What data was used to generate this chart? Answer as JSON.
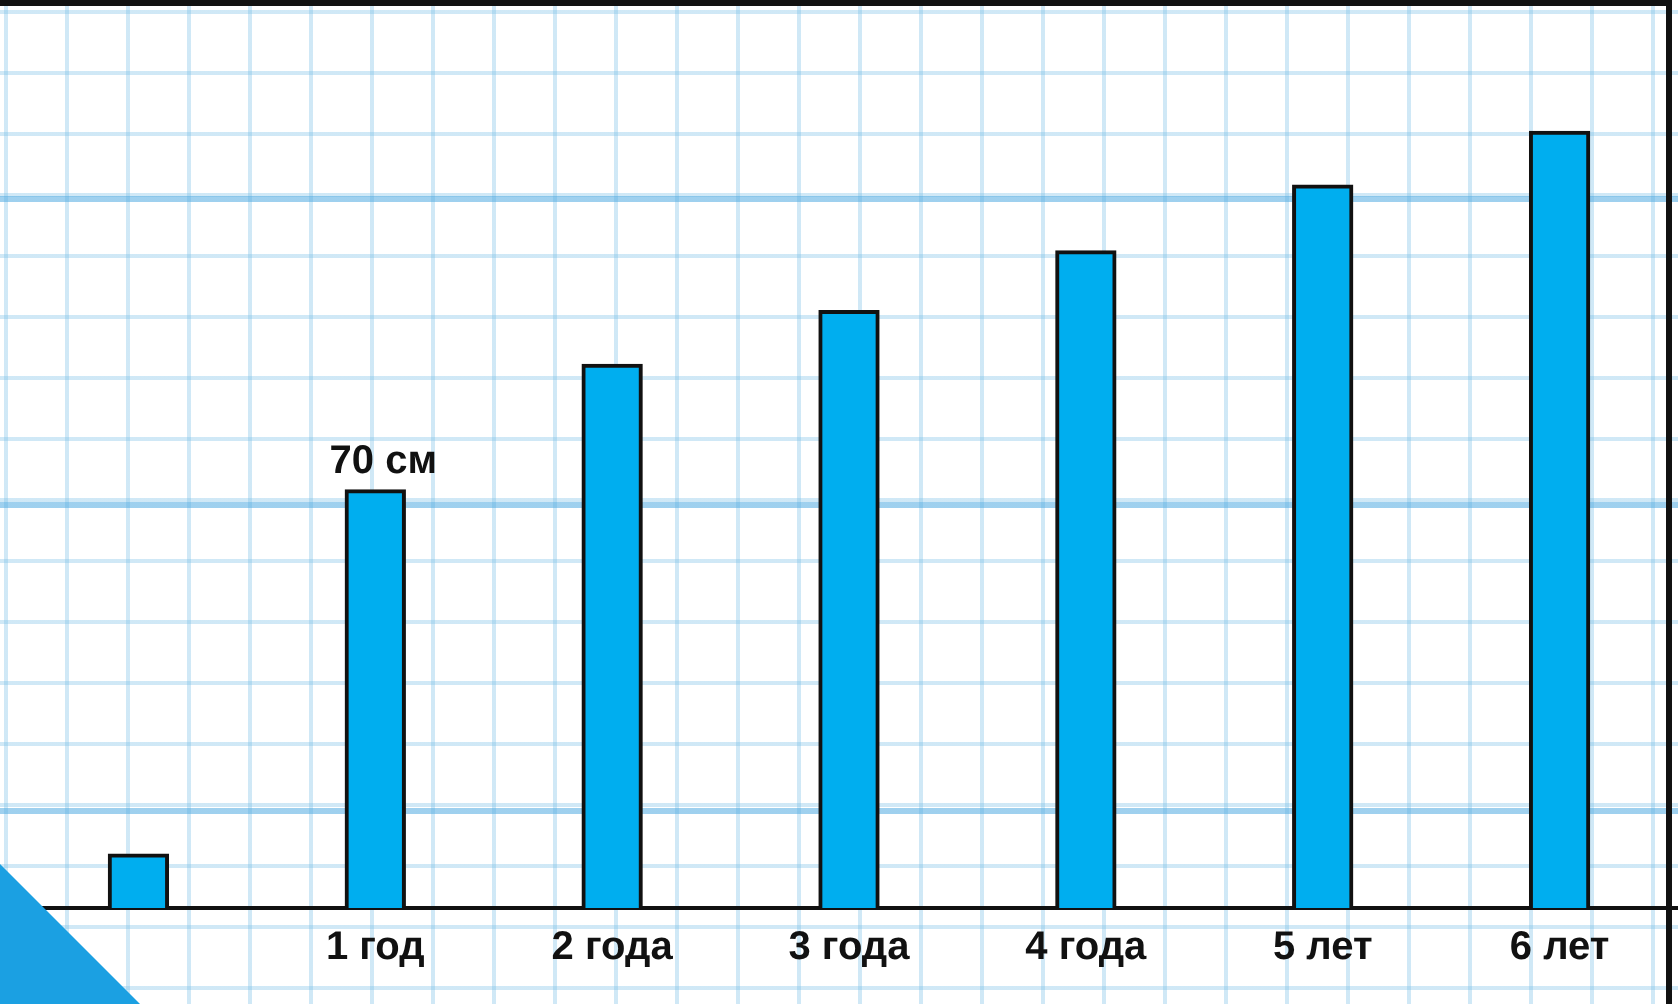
{
  "chart_data": {
    "type": "bar",
    "categories": [
      null,
      "1 год",
      "2 года",
      "3 года",
      "4 года",
      "5 лет",
      "6 лет"
    ],
    "values": [
      9,
      70,
      91,
      100,
      110,
      121,
      130
    ],
    "value_labels": [
      null,
      "70 см",
      null,
      null,
      null,
      null,
      null
    ],
    "color": "#00aeef",
    "ylim": [
      0,
      152
    ],
    "tick_labels": "x",
    "grid": false,
    "legend": false
  }
}
